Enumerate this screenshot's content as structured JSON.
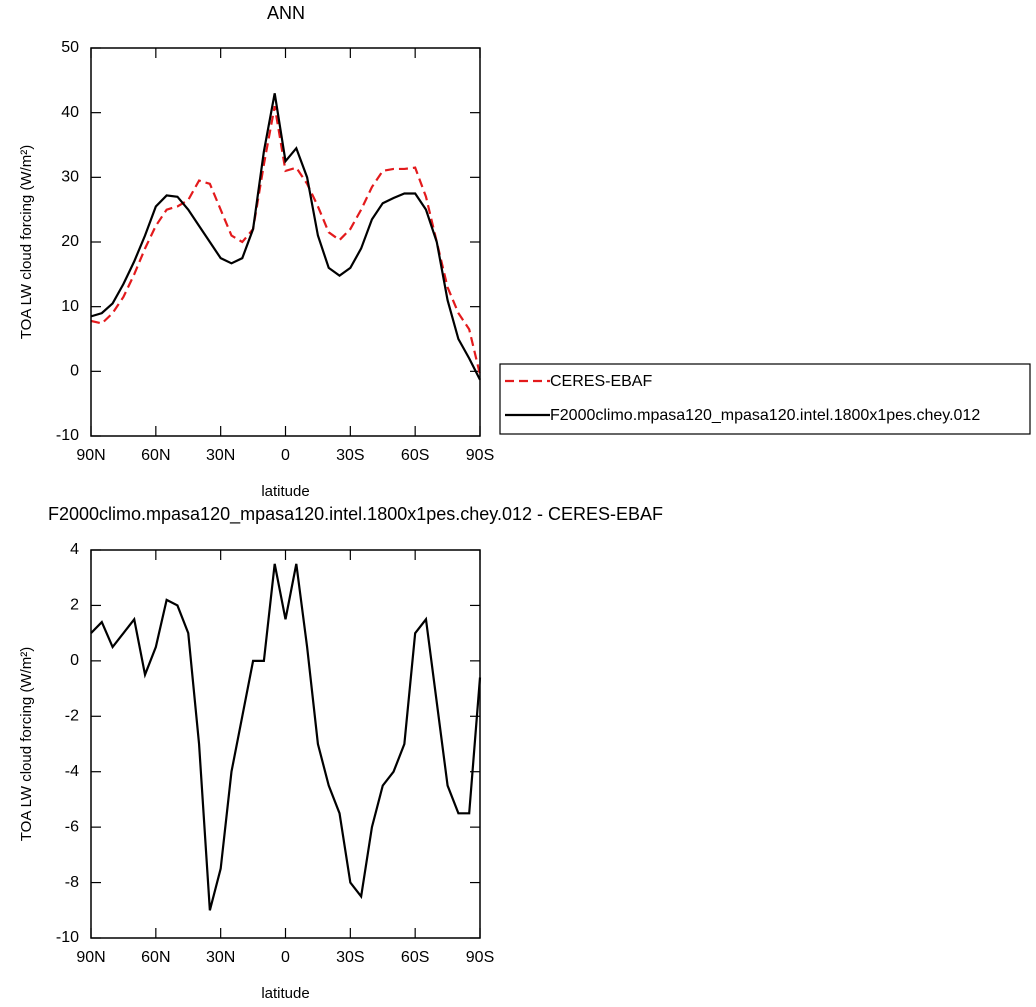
{
  "chart_data": [
    {
      "type": "line",
      "title": "ANN",
      "x_label": "latitude",
      "y_label": "TOA LW cloud forcing (W/m²)",
      "x": [
        90,
        85,
        80,
        75,
        70,
        65,
        60,
        55,
        50,
        45,
        40,
        35,
        30,
        25,
        20,
        15,
        10,
        5,
        0,
        -5,
        -10,
        -15,
        -20,
        -25,
        -30,
        -35,
        -40,
        -45,
        -50,
        -55,
        -60,
        -65,
        -70,
        -75,
        -80,
        -85,
        -90
      ],
      "xlim": [
        90,
        -90
      ],
      "xticks": [
        {
          "value": 90,
          "label": "90N"
        },
        {
          "value": 60,
          "label": "60N"
        },
        {
          "value": 30,
          "label": "30N"
        },
        0,
        {
          "value": -30,
          "label": "30S"
        },
        {
          "value": -60,
          "label": "60S"
        },
        {
          "value": -90,
          "label": "90S"
        }
      ],
      "ylim": [
        -10,
        50
      ],
      "yticks": [
        -10,
        0,
        10,
        20,
        30,
        40,
        50
      ],
      "series": [
        {
          "name": "CERES-EBAF",
          "color": "#e31a1c",
          "line_style": "dashed",
          "values": [
            7.8,
            7.4,
            9,
            11.5,
            15,
            19,
            22.5,
            25,
            25.5,
            26.5,
            29.5,
            29,
            25,
            21,
            20,
            22,
            32,
            41,
            31,
            31.5,
            29,
            25.5,
            21.5,
            20.3,
            22,
            25,
            28.5,
            31,
            31.3,
            31.3,
            31.5,
            27,
            20,
            13,
            9,
            6.5,
            -0.5
          ]
        },
        {
          "name": "F2000climo.mpasa120_mpasa120.intel.1800x1pes.chey.012",
          "color": "#000000",
          "line_style": "solid",
          "values": [
            8.5,
            9,
            10.5,
            13.5,
            17,
            21,
            25.5,
            27.2,
            27,
            25,
            22.5,
            20,
            17.5,
            16.7,
            17.5,
            22,
            34,
            43,
            32.5,
            34.5,
            30,
            21,
            16,
            14.8,
            16,
            19,
            23.5,
            26,
            26.8,
            27.5,
            27.5,
            25,
            20,
            11,
            5,
            2,
            -1.3
          ]
        }
      ]
    },
    {
      "type": "line",
      "title": "F2000climo.mpasa120_mpasa120.intel.1800x1pes.chey.012 - CERES-EBAF",
      "x_label": "latitude",
      "y_label": "TOA LW cloud forcing (W/m²)",
      "x": [
        90,
        85,
        80,
        75,
        70,
        65,
        60,
        55,
        50,
        45,
        40,
        35,
        30,
        25,
        20,
        15,
        10,
        5,
        0,
        -5,
        -10,
        -15,
        -20,
        -25,
        -30,
        -35,
        -40,
        -45,
        -50,
        -55,
        -60,
        -65,
        -70,
        -75,
        -80,
        -85,
        -90
      ],
      "xlim": [
        90,
        -90
      ],
      "xticks": [
        {
          "value": 90,
          "label": "90N"
        },
        {
          "value": 60,
          "label": "60N"
        },
        {
          "value": 30,
          "label": "30N"
        },
        0,
        {
          "value": -30,
          "label": "30S"
        },
        {
          "value": -60,
          "label": "60S"
        },
        {
          "value": -90,
          "label": "90S"
        }
      ],
      "ylim": [
        -10,
        4
      ],
      "yticks": [
        -10,
        -8,
        -6,
        -4,
        -2,
        0,
        2,
        4
      ],
      "color": "#000000",
      "values": [
        1,
        1.4,
        0.5,
        1,
        1.5,
        -0.5,
        0.5,
        2.2,
        2,
        1,
        -3,
        -9,
        -7.5,
        -4,
        -2,
        0,
        0,
        3.5,
        1.5,
        3.5,
        0.5,
        -3,
        -4.5,
        -5.5,
        -8,
        -8.5,
        -6,
        -4.5,
        -4,
        -3,
        1,
        1.5,
        -1.5,
        -4.5,
        -5.5,
        -5.5,
        -0.6
      ]
    }
  ]
}
